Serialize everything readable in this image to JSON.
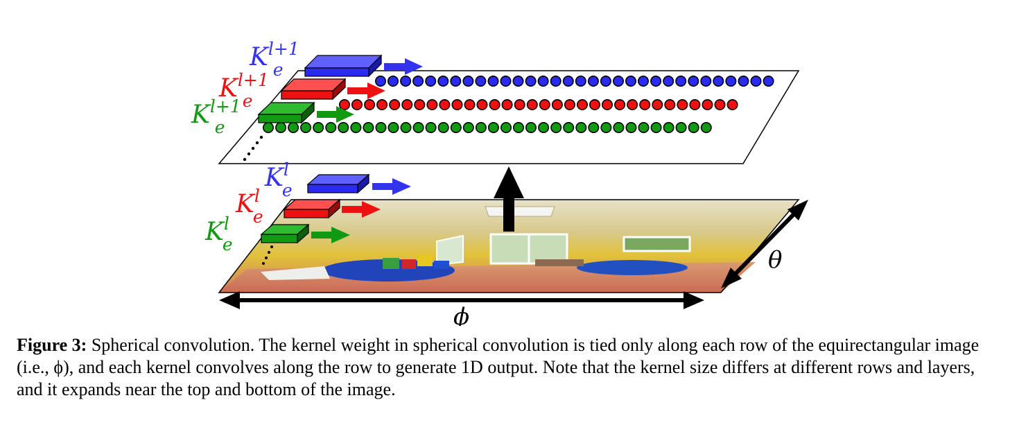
{
  "figure": {
    "upper_labels": [
      {
        "base": "K",
        "sub": "e",
        "sup": "l+1",
        "color": "#3333ee"
      },
      {
        "base": "K",
        "sub": "e",
        "sup": "l+1",
        "color": "#ee1111"
      },
      {
        "base": "K",
        "sub": "e",
        "sup": "l+1",
        "color": "#119911"
      }
    ],
    "lower_labels": [
      {
        "base": "K",
        "sub": "e",
        "sup": "l",
        "color": "#3333ee"
      },
      {
        "base": "K",
        "sub": "e",
        "sup": "l",
        "color": "#ee1111"
      },
      {
        "base": "K",
        "sub": "e",
        "sup": "l",
        "color": "#119911"
      }
    ],
    "theta_label": "θ",
    "phi_label": "ϕ",
    "colors": {
      "blue": "#2b2bf0",
      "red": "#ee1111",
      "green": "#129a12",
      "black": "#000000"
    }
  },
  "caption": {
    "label": "Figure 3:",
    "text": " Spherical convolution. The kernel weight in spherical convolution is tied only along each row of the equirectangular image (i.e., ϕ), and each kernel convolves along the row to generate 1D output. Note that the kernel size differs at different rows and layers, and it expands near the top and bottom of the image."
  }
}
